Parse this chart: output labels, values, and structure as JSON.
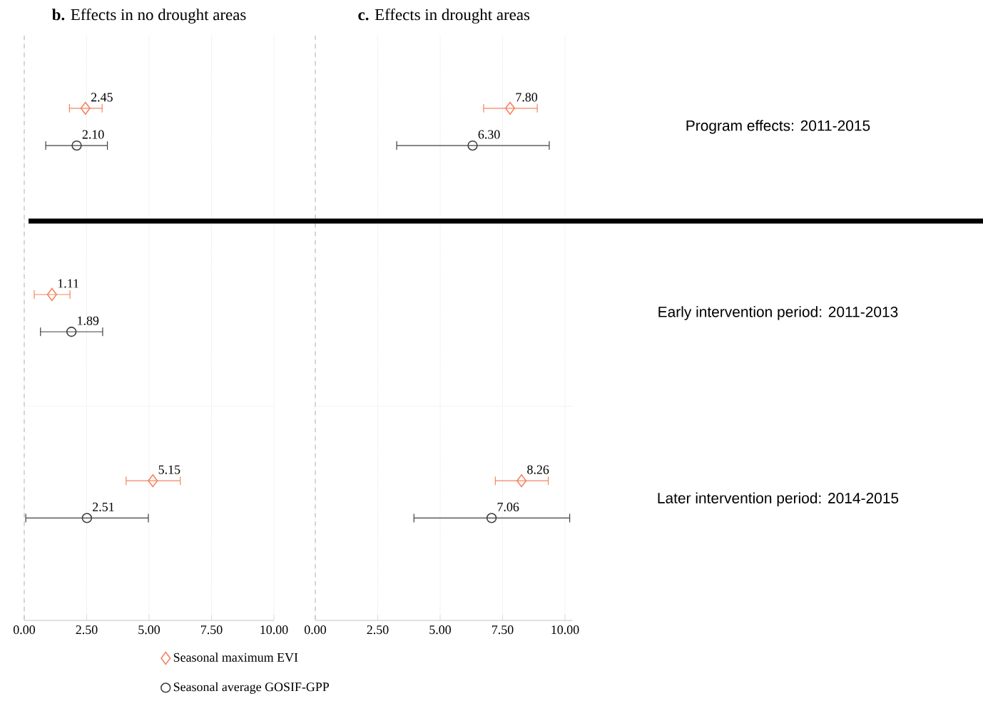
{
  "chart_data": [
    {
      "type": "scatter",
      "orientation": "horizontal",
      "title": "**b.** Effects in no drought areas",
      "categories": [
        null,
        null,
        null
      ],
      "series": [
        {
          "name": "Seasonal maximum EVI",
          "color": "#f4845f",
          "marker": "diamond",
          "values": [
            2.45,
            1.11,
            5.15
          ],
          "value_labels": [
            "2.45",
            "1.11",
            "5.15"
          ],
          "errors": [
            [
              1.81,
              3.12
            ],
            [
              0.4,
              1.83
            ],
            [
              4.08,
              6.25
            ]
          ]
        },
        {
          "name": "Seasonal average GOSIF-GPP",
          "color": "#404040",
          "marker": "circle",
          "values": [
            2.1,
            1.89,
            2.51
          ],
          "value_labels": [
            "2.10",
            "1.89",
            "2.51"
          ],
          "errors": [
            [
              0.86,
              3.33
            ],
            [
              0.65,
              3.14
            ],
            [
              0.06,
              4.97
            ]
          ]
        }
      ],
      "xlim": [
        0,
        10
      ],
      "xticks": [
        {
          "value": 0,
          "label": "0.00"
        },
        {
          "value": 2.5,
          "label": "2.50"
        },
        {
          "value": 5,
          "label": "5.00"
        },
        {
          "value": 7.5,
          "label": "7.50"
        },
        {
          "value": 10,
          "label": "10.00"
        }
      ],
      "grid": "x",
      "ref_lines": [
        {
          "axis": "x",
          "value": 0,
          "line_style": "dashed",
          "color": "#a0a0a0"
        }
      ],
      "legend": "bottom",
      "tick_labels": "x"
    },
    {
      "type": "scatter",
      "orientation": "horizontal",
      "title": "**c.** Effects in drought areas",
      "categories": [
        "Program effects: 2011-2015",
        "Early intervention period: 2011-2013",
        "Later intervention period: 2014-2015"
      ],
      "series": [
        {
          "color": "#f4845f",
          "marker": "diamond",
          "values": [
            7.8,
            null,
            8.26
          ],
          "value_labels": [
            "7.80",
            null,
            "8.26"
          ],
          "errors": [
            [
              6.74,
              8.89
            ],
            null,
            [
              7.21,
              9.33
            ]
          ]
        },
        {
          "color": "#404040",
          "marker": "circle",
          "values": [
            6.3,
            null,
            7.06
          ],
          "value_labels": [
            "6.30",
            null,
            "7.06"
          ],
          "errors": [
            [
              3.26,
              9.37
            ],
            null,
            [
              3.95,
              10.19
            ]
          ]
        }
      ],
      "xlim": [
        0,
        10.3
      ],
      "xticks": [
        {
          "value": 0,
          "label": "0.00"
        },
        {
          "value": 2.5,
          "label": "2.50"
        },
        {
          "value": 5,
          "label": "5.00"
        },
        {
          "value": 7.5,
          "label": "7.50"
        },
        {
          "value": 10,
          "label": "10.00"
        }
      ],
      "grid": "x",
      "ref_lines": [
        {
          "axis": "x",
          "value": 0,
          "line_style": "dashed",
          "color": "#a0a0a0"
        }
      ]
    }
  ]
}
